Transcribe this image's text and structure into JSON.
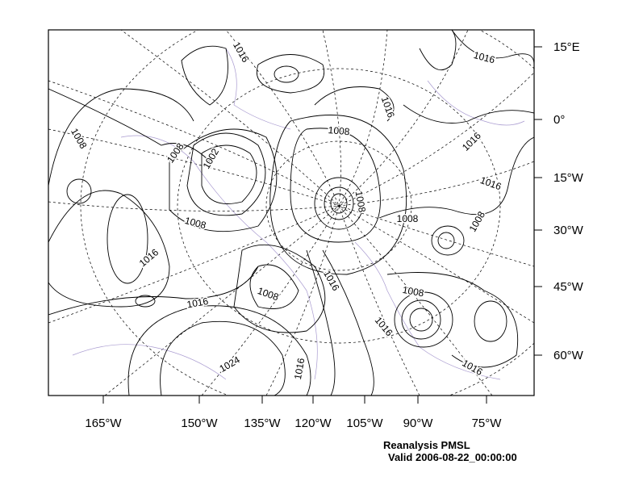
{
  "map": {
    "lat_labels": [
      "15°E",
      "0°",
      "15°W",
      "30°W",
      "45°W",
      "60°W"
    ],
    "lon_labels": [
      "165°W",
      "150°W",
      "135°W",
      "120°W",
      "105°W",
      "90°W",
      "75°W"
    ],
    "contour_labels": [
      "1016",
      "1016",
      "1016",
      "1008",
      "1008",
      "1002",
      "1008",
      "1016",
      "1016",
      "1008",
      "1008",
      "1008",
      "1008",
      "1016",
      "1016",
      "1008",
      "1008",
      "1016",
      "1016",
      "1024",
      "1016",
      "1016"
    ],
    "caption": {
      "title": "Reanalysis PMSL",
      "valid": "Valid 2006-08-22_00:00:00"
    }
  }
}
